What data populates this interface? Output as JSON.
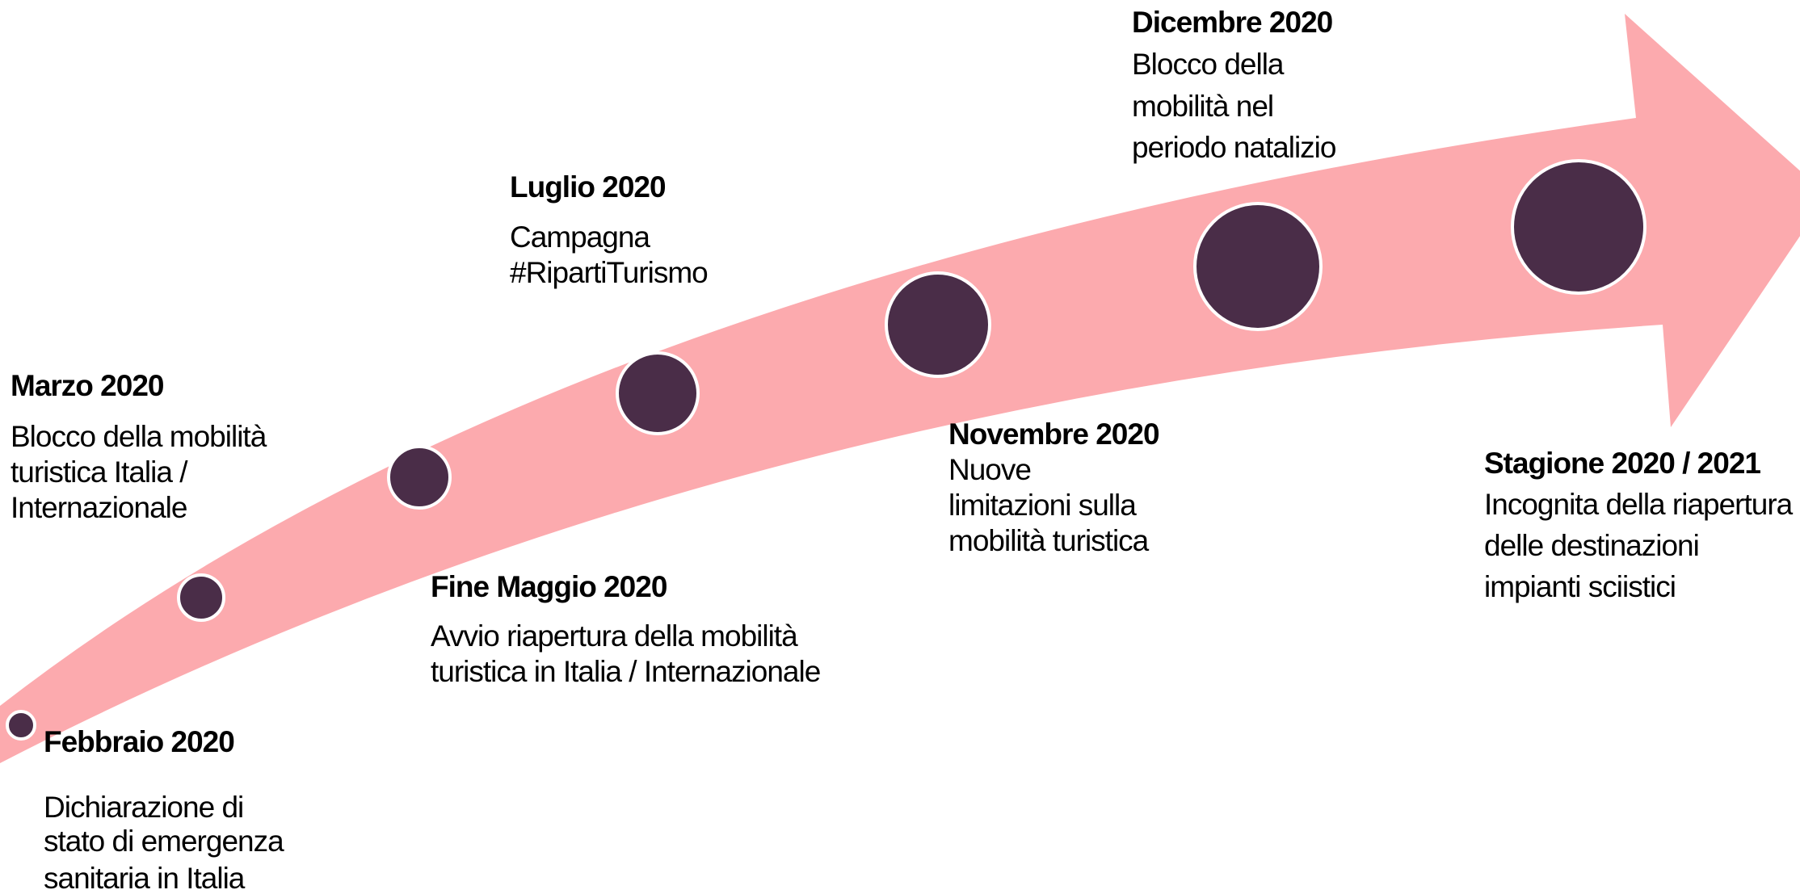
{
  "events": [
    {
      "title": "Febbraio 2020",
      "lines": [
        "Dichiarazione di",
        "stato di emergenza",
        "sanitaria in Italia"
      ]
    },
    {
      "title": "Marzo 2020",
      "lines": [
        "Blocco della mobilità",
        "turistica Italia /",
        "Internazionale"
      ]
    },
    {
      "title": "Fine Maggio 2020",
      "lines": [
        "Avvio riapertura della mobilità",
        "turistica in Italia / Internazionale"
      ]
    },
    {
      "title": "Luglio 2020",
      "lines": [
        "Campagna",
        "#RipartiTurismo"
      ]
    },
    {
      "title": "Novembre 2020",
      "lines": [
        "Nuove",
        "limitazioni sulla",
        "mobilità turistica"
      ]
    },
    {
      "title": "Dicembre 2020",
      "lines": [
        "Blocco della",
        "mobilità nel",
        "periodo natalizio"
      ]
    },
    {
      "title": "Stagione 2020 / 2021",
      "lines": [
        "Incognita della riapertura",
        "delle destinazioni",
        "impianti sciistici"
      ]
    }
  ]
}
